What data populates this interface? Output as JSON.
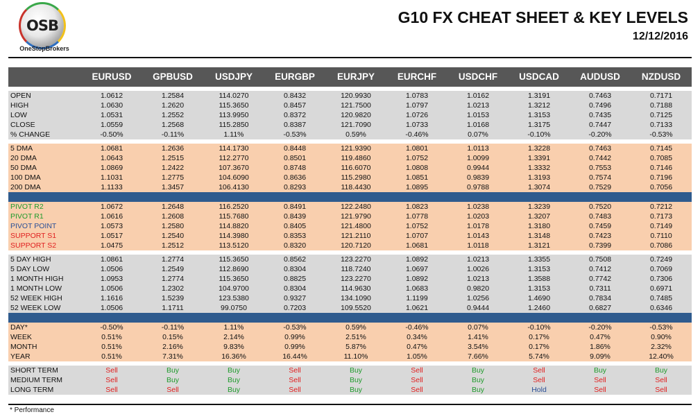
{
  "header": {
    "logo_text": "OSB",
    "logo_subtext": "OneStopBrokers",
    "title": "G10 FX CHEAT SHEET & KEY LEVELS",
    "date": "12/12/2016"
  },
  "columns": [
    "EURUSD",
    "GPBUSD",
    "USDJPY",
    "EURGBP",
    "EURJPY",
    "EURCHF",
    "USDCHF",
    "USDCAD",
    "AUDUSD",
    "NZDUSD"
  ],
  "sections": [
    {
      "style": "gray",
      "rows": [
        {
          "label": "OPEN",
          "values": [
            "1.0612",
            "1.2584",
            "114.0270",
            "0.8432",
            "120.9930",
            "1.0783",
            "1.0162",
            "1.3191",
            "0.7463",
            "0.7171"
          ]
        },
        {
          "label": "HIGH",
          "values": [
            "1.0630",
            "1.2620",
            "115.3650",
            "0.8457",
            "121.7500",
            "1.0797",
            "1.0213",
            "1.3212",
            "0.7496",
            "0.7188"
          ]
        },
        {
          "label": "LOW",
          "values": [
            "1.0531",
            "1.2552",
            "113.9950",
            "0.8372",
            "120.9820",
            "1.0726",
            "1.0153",
            "1.3153",
            "0.7435",
            "0.7125"
          ]
        },
        {
          "label": "CLOSE",
          "values": [
            "1.0559",
            "1.2568",
            "115.2850",
            "0.8387",
            "121.7090",
            "1.0733",
            "1.0168",
            "1.3175",
            "0.7447",
            "0.7133"
          ]
        },
        {
          "label": "% CHANGE",
          "values": [
            "-0.50%",
            "-0.11%",
            "1.11%",
            "-0.53%",
            "0.59%",
            "-0.46%",
            "0.07%",
            "-0.10%",
            "-0.20%",
            "-0.53%"
          ]
        }
      ]
    },
    {
      "style": "peach",
      "rows": [
        {
          "label": "5 DMA",
          "values": [
            "1.0681",
            "1.2636",
            "114.1730",
            "0.8448",
            "121.9390",
            "1.0801",
            "1.0113",
            "1.3228",
            "0.7463",
            "0.7145"
          ]
        },
        {
          "label": "20 DMA",
          "values": [
            "1.0643",
            "1.2515",
            "112.2770",
            "0.8501",
            "119.4860",
            "1.0752",
            "1.0099",
            "1.3391",
            "0.7442",
            "0.7085"
          ]
        },
        {
          "label": "50 DMA",
          "values": [
            "1.0869",
            "1.2422",
            "107.3670",
            "0.8748",
            "116.6070",
            "1.0808",
            "0.9944",
            "1.3332",
            "0.7553",
            "0.7146"
          ]
        },
        {
          "label": "100 DMA",
          "values": [
            "1.1031",
            "1.2775",
            "104.6090",
            "0.8636",
            "115.2980",
            "1.0851",
            "0.9839",
            "1.3193",
            "0.7574",
            "0.7196"
          ]
        },
        {
          "label": "200 DMA",
          "values": [
            "1.1133",
            "1.3457",
            "106.4130",
            "0.8293",
            "118.4430",
            "1.0895",
            "0.9788",
            "1.3074",
            "0.7529",
            "0.7056"
          ]
        }
      ]
    },
    {
      "style": "peach",
      "rows": [
        {
          "label": "PIVOT R2",
          "label_color": "green",
          "values": [
            "1.0672",
            "1.2648",
            "116.2520",
            "0.8491",
            "122.2480",
            "1.0823",
            "1.0238",
            "1.3239",
            "0.7520",
            "0.7212"
          ]
        },
        {
          "label": "PIVOT R1",
          "label_color": "green",
          "values": [
            "1.0616",
            "1.2608",
            "115.7680",
            "0.8439",
            "121.9790",
            "1.0778",
            "1.0203",
            "1.3207",
            "0.7483",
            "0.7173"
          ]
        },
        {
          "label": "PIVOT POINT",
          "label_color": "blue",
          "values": [
            "1.0573",
            "1.2580",
            "114.8820",
            "0.8405",
            "121.4800",
            "1.0752",
            "1.0178",
            "1.3180",
            "0.7459",
            "0.7149"
          ]
        },
        {
          "label": "SUPPORT S1",
          "label_color": "red",
          "values": [
            "1.0517",
            "1.2540",
            "114.3980",
            "0.8353",
            "121.2110",
            "1.0707",
            "1.0143",
            "1.3148",
            "0.7423",
            "0.7110"
          ]
        },
        {
          "label": "SUPPORT S2",
          "label_color": "red",
          "values": [
            "1.0475",
            "1.2512",
            "113.5120",
            "0.8320",
            "120.7120",
            "1.0681",
            "1.0118",
            "1.3121",
            "0.7399",
            "0.7086"
          ]
        }
      ]
    },
    {
      "style": "gray",
      "rows": [
        {
          "label": "5 DAY HIGH",
          "values": [
            "1.0861",
            "1.2774",
            "115.3650",
            "0.8562",
            "123.2270",
            "1.0892",
            "1.0213",
            "1.3355",
            "0.7508",
            "0.7249"
          ]
        },
        {
          "label": "5 DAY LOW",
          "values": [
            "1.0506",
            "1.2549",
            "112.8690",
            "0.8304",
            "118.7240",
            "1.0697",
            "1.0026",
            "1.3153",
            "0.7412",
            "0.7069"
          ]
        },
        {
          "label": "1 MONTH HIGH",
          "values": [
            "1.0953",
            "1.2774",
            "115.3650",
            "0.8825",
            "123.2270",
            "1.0892",
            "1.0213",
            "1.3588",
            "0.7742",
            "0.7306"
          ]
        },
        {
          "label": "1 MONTH LOW",
          "values": [
            "1.0506",
            "1.2302",
            "104.9700",
            "0.8304",
            "114.9630",
            "1.0683",
            "0.9820",
            "1.3153",
            "0.7311",
            "0.6971"
          ]
        },
        {
          "label": "52 WEEK HIGH",
          "values": [
            "1.1616",
            "1.5239",
            "123.5380",
            "0.9327",
            "134.1090",
            "1.1199",
            "1.0256",
            "1.4690",
            "0.7834",
            "0.7485"
          ]
        },
        {
          "label": "52 WEEK LOW",
          "values": [
            "1.0506",
            "1.1711",
            "99.0750",
            "0.7203",
            "109.5520",
            "1.0621",
            "0.9444",
            "1.2460",
            "0.6827",
            "0.6346"
          ]
        }
      ]
    },
    {
      "style": "peach",
      "rows": [
        {
          "label": "DAY*",
          "values": [
            "-0.50%",
            "-0.11%",
            "1.11%",
            "-0.53%",
            "0.59%",
            "-0.46%",
            "0.07%",
            "-0.10%",
            "-0.20%",
            "-0.53%"
          ]
        },
        {
          "label": "WEEK",
          "values": [
            "0.51%",
            "0.15%",
            "2.14%",
            "0.99%",
            "2.51%",
            "0.34%",
            "1.41%",
            "0.17%",
            "0.47%",
            "0.90%"
          ]
        },
        {
          "label": "MONTH",
          "values": [
            "0.51%",
            "2.16%",
            "9.83%",
            "0.99%",
            "5.87%",
            "0.47%",
            "3.54%",
            "0.17%",
            "1.86%",
            "2.32%"
          ]
        },
        {
          "label": "YEAR",
          "values": [
            "0.51%",
            "7.31%",
            "16.36%",
            "16.44%",
            "11.10%",
            "1.05%",
            "7.66%",
            "5.74%",
            "9.09%",
            "12.40%"
          ]
        }
      ]
    },
    {
      "style": "gray",
      "signals": true,
      "rows": [
        {
          "label": "SHORT TERM",
          "values": [
            "Sell",
            "Buy",
            "Buy",
            "Sell",
            "Buy",
            "Sell",
            "Buy",
            "Sell",
            "Buy",
            "Buy"
          ]
        },
        {
          "label": "MEDIUM TERM",
          "values": [
            "Sell",
            "Buy",
            "Buy",
            "Sell",
            "Buy",
            "Sell",
            "Buy",
            "Sell",
            "Sell",
            "Sell"
          ]
        },
        {
          "label": "LONG TERM",
          "values": [
            "Sell",
            "Sell",
            "Buy",
            "Sell",
            "Buy",
            "Sell",
            "Buy",
            "Hold",
            "Sell",
            "Sell"
          ]
        }
      ]
    }
  ],
  "separators": [
    "white",
    "white",
    "blue",
    "white",
    "blue",
    "white"
  ],
  "signal_colors": {
    "Buy": "#1f9a2c",
    "Sell": "#e02020",
    "Hold": "#2a4f96"
  },
  "label_colors": {
    "green": "#1f9a2c",
    "red": "#e02020",
    "blue": "#2a4f96"
  },
  "footnote": "* Performance"
}
